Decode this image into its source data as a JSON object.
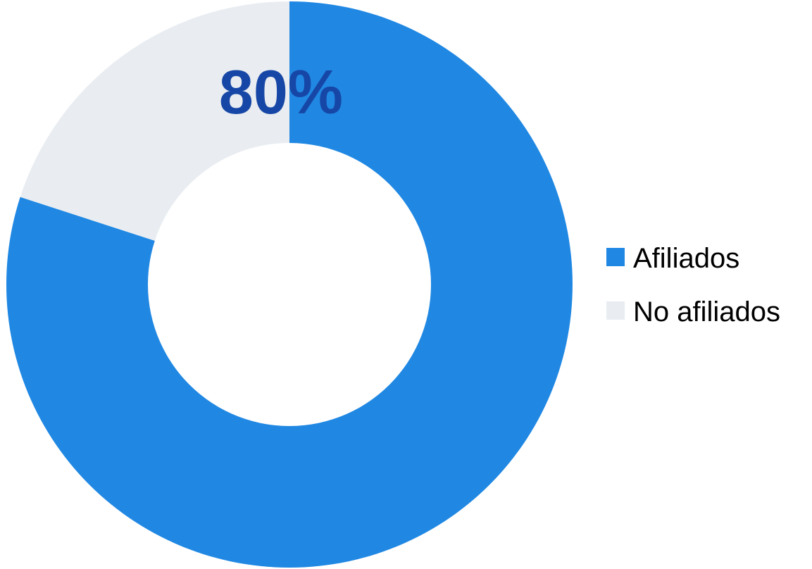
{
  "chart_data": {
    "type": "pie",
    "categories": [
      "Afiliados",
      "No afiliados"
    ],
    "values": [
      80,
      20
    ],
    "data_labels": [
      "80%",
      ""
    ],
    "title": "",
    "legend_position": "right"
  },
  "colors": {
    "slices": [
      "#2088E3",
      "#E9EDF1"
    ],
    "label": "#1747A6",
    "legend_text": "#000000"
  }
}
